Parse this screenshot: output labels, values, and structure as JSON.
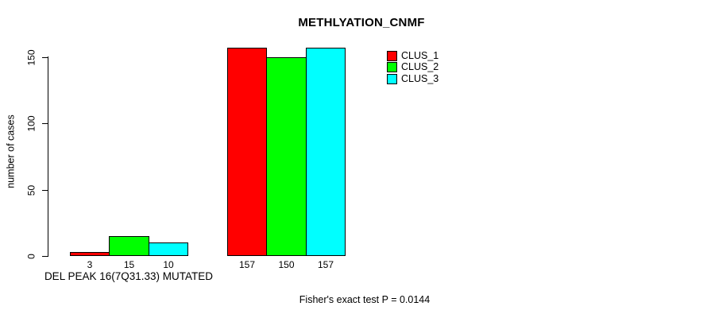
{
  "chart_data": {
    "type": "bar",
    "title": "METHLYATION_CNMF",
    "ylabel": "number of cases",
    "xlabel": "",
    "yticks": [
      0,
      50,
      100,
      150
    ],
    "ylim": [
      0,
      157
    ],
    "grid": false,
    "legend_position": "top-right",
    "categories": [
      "DEL PEAK 16(7Q31.33) MUTATED",
      ""
    ],
    "series": [
      {
        "name": "CLUS_1",
        "color": "#ff0000",
        "values": [
          3,
          157
        ]
      },
      {
        "name": "CLUS_2",
        "color": "#00ff00",
        "values": [
          15,
          150
        ]
      },
      {
        "name": "CLUS_3",
        "color": "#00ffff",
        "values": [
          10,
          157
        ]
      }
    ],
    "bar_value_labels": [
      [
        "3",
        "15",
        "10"
      ],
      [
        "157",
        "150",
        "157"
      ]
    ],
    "annotation": "Fisher's exact test P = 0.0144"
  },
  "colors": {
    "background": "#ffffff",
    "axis": "#000000",
    "text": "#000000"
  }
}
